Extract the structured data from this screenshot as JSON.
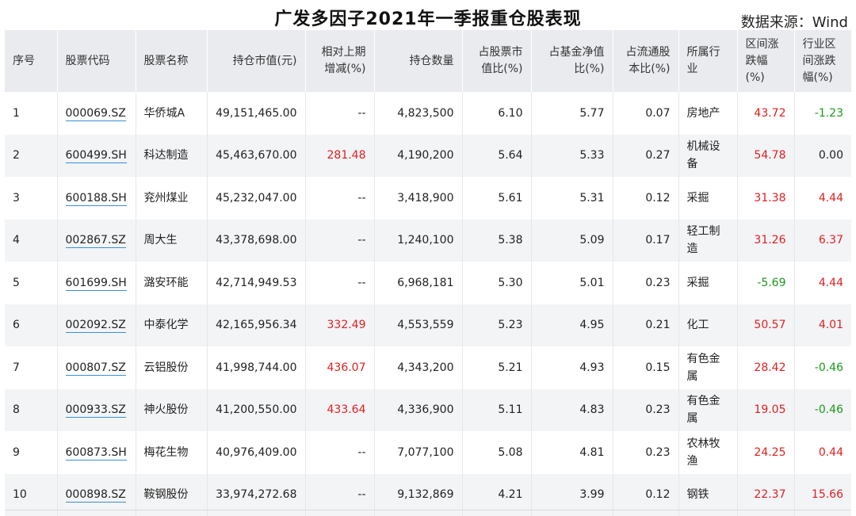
{
  "title": "广发多因子2021年一季报重仓股表现",
  "source": "数据来源：Wind",
  "columns": [
    "序号",
    "股票代码",
    "股票名称",
    "持仓市值(元)",
    "相对上期增减(%)",
    "持仓数量",
    "占股票市值比(%)",
    "占基金净值比(%)",
    "占流通股本比(%)",
    "所属行业",
    "区间涨跌幅(%)",
    "行业区间涨跌幅(%)"
  ],
  "header_lines": [
    [
      "序号"
    ],
    [
      "股票代码"
    ],
    [
      "股票名称"
    ],
    [
      "持仓市值(元)"
    ],
    [
      "相对上期",
      "增减(%)"
    ],
    [
      "持仓数量"
    ],
    [
      "占股票市",
      "值比(%)"
    ],
    [
      "占基金净值",
      "比(%)"
    ],
    [
      "占流通股",
      "本比(%)"
    ],
    [
      "所属行",
      "业"
    ],
    [
      "区间涨",
      "跌幅(%)"
    ],
    [
      "行业区",
      "间涨跌",
      "幅(%)"
    ]
  ],
  "rows": [
    {
      "no": "1",
      "code": "000069.SZ",
      "name": "华侨城A",
      "value": "49,151,465.00",
      "change": "--",
      "qty": "4,823,500",
      "stock_ratio": "6.10",
      "nav_ratio": "5.77",
      "float_ratio": "0.07",
      "industry": [
        "房地产"
      ],
      "ret": "43.72",
      "ind_ret": "-1.23",
      "change_color": "black",
      "ret_color": "red",
      "ind_ret_color": "green"
    },
    {
      "no": "2",
      "code": "600499.SH",
      "name": "科达制造",
      "value": "45,463,670.00",
      "change": "281.48",
      "qty": "4,190,200",
      "stock_ratio": "5.64",
      "nav_ratio": "5.33",
      "float_ratio": "0.27",
      "industry": [
        "机械设",
        "备"
      ],
      "ret": "54.78",
      "ind_ret": "0.00",
      "change_color": "red",
      "ret_color": "red",
      "ind_ret_color": "black"
    },
    {
      "no": "3",
      "code": "600188.SH",
      "name": "兖州煤业",
      "value": "45,232,047.00",
      "change": "--",
      "qty": "3,418,900",
      "stock_ratio": "5.61",
      "nav_ratio": "5.31",
      "float_ratio": "0.12",
      "industry": [
        "采掘"
      ],
      "ret": "31.38",
      "ind_ret": "4.44",
      "change_color": "black",
      "ret_color": "red",
      "ind_ret_color": "red"
    },
    {
      "no": "4",
      "code": "002867.SZ",
      "name": "周大生",
      "value": "43,378,698.00",
      "change": "--",
      "qty": "1,240,100",
      "stock_ratio": "5.38",
      "nav_ratio": "5.09",
      "float_ratio": "0.17",
      "industry": [
        "轻工制",
        "造"
      ],
      "ret": "31.26",
      "ind_ret": "6.37",
      "change_color": "black",
      "ret_color": "red",
      "ind_ret_color": "red"
    },
    {
      "no": "5",
      "code": "601699.SH",
      "name": "潞安环能",
      "value": "42,714,949.53",
      "change": "--",
      "qty": "6,968,181",
      "stock_ratio": "5.30",
      "nav_ratio": "5.01",
      "float_ratio": "0.23",
      "industry": [
        "采掘"
      ],
      "ret": "-5.69",
      "ind_ret": "4.44",
      "change_color": "black",
      "ret_color": "green",
      "ind_ret_color": "red"
    },
    {
      "no": "6",
      "code": "002092.SZ",
      "name": "中泰化学",
      "value": "42,165,956.34",
      "change": "332.49",
      "qty": "4,553,559",
      "stock_ratio": "5.23",
      "nav_ratio": "4.95",
      "float_ratio": "0.21",
      "industry": [
        "化工"
      ],
      "ret": "50.57",
      "ind_ret": "4.01",
      "change_color": "red",
      "ret_color": "red",
      "ind_ret_color": "red"
    },
    {
      "no": "7",
      "code": "000807.SZ",
      "name": "云铝股份",
      "value": "41,998,744.00",
      "change": "436.07",
      "qty": "4,343,200",
      "stock_ratio": "5.21",
      "nav_ratio": "4.93",
      "float_ratio": "0.15",
      "industry": [
        "有色金",
        "属"
      ],
      "ret": "28.42",
      "ind_ret": "-0.46",
      "change_color": "red",
      "ret_color": "red",
      "ind_ret_color": "green"
    },
    {
      "no": "8",
      "code": "000933.SZ",
      "name": "神火股份",
      "value": "41,200,550.00",
      "change": "433.64",
      "qty": "4,336,900",
      "stock_ratio": "5.11",
      "nav_ratio": "4.83",
      "float_ratio": "0.23",
      "industry": [
        "有色金",
        "属"
      ],
      "ret": "19.05",
      "ind_ret": "-0.46",
      "change_color": "red",
      "ret_color": "red",
      "ind_ret_color": "green"
    },
    {
      "no": "9",
      "code": "600873.SH",
      "name": "梅花生物",
      "value": "40,976,409.00",
      "change": "--",
      "qty": "7,077,100",
      "stock_ratio": "5.08",
      "nav_ratio": "4.81",
      "float_ratio": "0.23",
      "industry": [
        "农林牧",
        "渔"
      ],
      "ret": "24.25",
      "ind_ret": "0.44",
      "change_color": "black",
      "ret_color": "red",
      "ind_ret_color": "red"
    },
    {
      "no": "10",
      "code": "000898.SZ",
      "name": "鞍钢股份",
      "value": "33,974,272.68",
      "change": "--",
      "qty": "9,132,869",
      "stock_ratio": "4.21",
      "nav_ratio": "3.99",
      "float_ratio": "0.12",
      "industry": [
        "钢铁"
      ],
      "ret": "22.37",
      "ind_ret": "15.66",
      "change_color": "black",
      "ret_color": "red",
      "ind_ret_color": "red"
    }
  ],
  "colors": {
    "positive": "#e02020",
    "negative": "#1a9a1a",
    "header_bg": "#e9ebef",
    "stripe_bg": "#f3f4f6",
    "link_underline": "#3a8fd6"
  }
}
